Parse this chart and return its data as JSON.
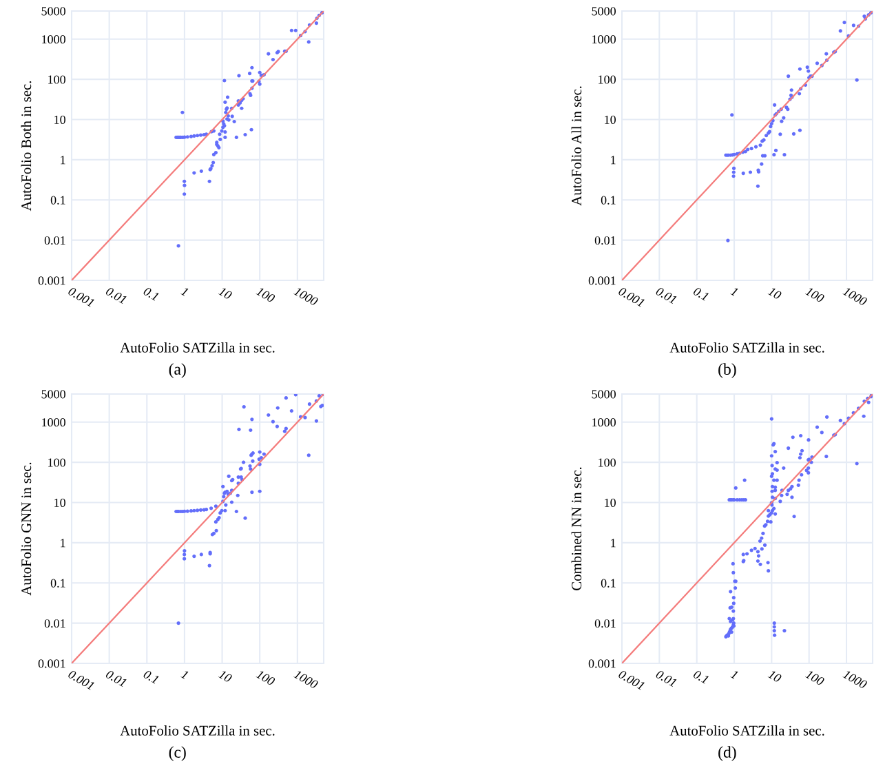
{
  "chart_data": [
    {
      "type": "scatter",
      "xlabel": "AutoFolio SATZilla in sec.",
      "ylabel": "AutoFolio Both in sec.",
      "annotations": [
        "(a)"
      ],
      "log": "xy",
      "grid": true,
      "xlim": [
        0.001,
        5000
      ],
      "ylim": [
        0.001,
        5000
      ],
      "xticks": [
        0.001,
        0.01,
        0.1,
        1,
        10,
        100,
        1000
      ],
      "yticks": [
        0.001,
        0.01,
        0.1,
        1,
        10,
        100,
        1000,
        5000
      ],
      "series": [
        {
          "type": "scatter",
          "marker": "circle",
          "color": "#636efa",
          "x": [
            0.69,
            0.88,
            0.99,
            1.0,
            0.99,
            1.8,
            2.8,
            4.6,
            4.8,
            5.0,
            5.4,
            5.8,
            6.0,
            6.8,
            0.6,
            0.65,
            0.7,
            0.75,
            0.8,
            0.9,
            1.0,
            1.2,
            1.5,
            1.8,
            2.2,
            2.7,
            3.3,
            3.8,
            5.2,
            6.0,
            7.2,
            7.7,
            8.2,
            7.2,
            8.9,
            8.6,
            9.8,
            10.5,
            11.0,
            11.5,
            12,
            12,
            10.5,
            13.5,
            14.5,
            12.5,
            13.5,
            13,
            12,
            14,
            11.5,
            15,
            18.5,
            18,
            21,
            24,
            27,
            27,
            30,
            33,
            36,
            33,
            41,
            60,
            28,
            55,
            57,
            62,
            62,
            65,
            54,
            62,
            95,
            100,
            110,
            120,
            130,
            100,
            170,
            225,
            290,
            310,
            460,
            500,
            700,
            900,
            1220,
            1600,
            2000,
            2100,
            3200,
            3300,
            3800,
            4500,
            4800
          ],
          "values": [
            0.0072,
            15,
            0.29,
            0.23,
            0.14,
            0.47,
            0.52,
            0.29,
            0.57,
            0.6,
            0.71,
            0.85,
            1.35,
            1.5,
            3.6,
            3.6,
            3.6,
            3.6,
            3.6,
            3.6,
            3.65,
            3.7,
            3.8,
            3.9,
            4.0,
            4.1,
            4.2,
            4.3,
            5.0,
            5.2,
            2.4,
            2.2,
            2.0,
            2.7,
            3.2,
            4.3,
            5.2,
            6.4,
            7.8,
            7,
            4.9,
            3.6,
            9.1,
            10.3,
            12.3,
            15,
            19.4,
            18,
            27,
            36,
            93,
            9.8,
            12,
            19,
            8.9,
            3.6,
            29,
            23,
            26,
            30,
            33,
            19,
            4.2,
            5.6,
            123,
            44,
            40,
            60,
            91,
            91,
            140,
            195,
            89,
            148,
            126,
            126,
            130,
            76,
            430,
            310,
            460,
            490,
            500,
            500,
            1640,
            1640,
            1230,
            1540,
            850,
            2250,
            2500,
            3300,
            3900,
            4500,
            4800
          ]
        },
        {
          "type": "line",
          "marker": "none",
          "color": "#f47c7c",
          "x": [
            0.001,
            5000
          ],
          "values": [
            0.001,
            5000
          ]
        }
      ]
    },
    {
      "type": "scatter",
      "xlabel": "AutoFolio SATZilla in sec.",
      "ylabel": "AutoFolio All in sec.",
      "annotations": [
        "(b)"
      ],
      "log": "xy",
      "grid": true,
      "xlim": [
        0.001,
        5000
      ],
      "ylim": [
        0.001,
        5000
      ],
      "xticks": [
        0.001,
        0.01,
        0.1,
        1,
        10,
        100,
        1000
      ],
      "yticks": [
        0.001,
        0.01,
        0.1,
        1,
        10,
        100,
        1000,
        5000
      ],
      "series": [
        {
          "type": "scatter",
          "marker": "circle",
          "color": "#636efa",
          "x": [
            0.68,
            0.87,
            0.6,
            0.65,
            0.7,
            0.8,
            0.9,
            1.0,
            1.2,
            1.4,
            1.7,
            2.0,
            2.3,
            2.9,
            3.8,
            5.0,
            5.6,
            6.2,
            7.2,
            8.2,
            8.8,
            9.4,
            10,
            10.8,
            12.5,
            13.5,
            15.5,
            18,
            21,
            18.5,
            17,
            12,
            25,
            27,
            31,
            35,
            33,
            34,
            55,
            60,
            39,
            57,
            28,
            57,
            90,
            96,
            80,
            100,
            110,
            120,
            165,
            220,
            290,
            300,
            460,
            500,
            690,
            880,
            1140,
            1550,
            2100,
            1900,
            3000,
            3200,
            3900,
            4500,
            0.98,
            0.97,
            0.96,
            1.75,
            2.7,
            4.4,
            4.5,
            5.4,
            4.3,
            5.8,
            6.6,
            11.6,
            13,
            22
          ],
          "values": [
            0.0098,
            13,
            1.3,
            1.3,
            1.3,
            1.3,
            1.32,
            1.35,
            1.4,
            1.45,
            1.55,
            1.6,
            1.8,
            1.9,
            2.1,
            2.3,
            2.9,
            3.1,
            4.0,
            4.6,
            5.0,
            6.7,
            7.9,
            9.4,
            13,
            14,
            16,
            18,
            11,
            9.0,
            4.3,
            23,
            20,
            18,
            32,
            36,
            40,
            54,
            44,
            58,
            4.4,
            5.4,
            120,
            180,
            200,
            160,
            72,
            110,
            120,
            120,
            250,
            220,
            430,
            300,
            470,
            490,
            1600,
            2600,
            1200,
            2200,
            2100,
            96,
            3700,
            3200,
            4000,
            4500,
            0.61,
            0.49,
            0.39,
            0.46,
            0.49,
            0.55,
            0.5,
            0.78,
            0.22,
            1.26,
            1.26,
            1.33,
            1.7,
            1.33
          ]
        },
        {
          "type": "line",
          "marker": "none",
          "color": "#f47c7c",
          "x": [
            0.001,
            5000
          ],
          "values": [
            0.001,
            5000
          ]
        }
      ]
    },
    {
      "type": "scatter",
      "xlabel": "AutoFolio SATZilla in sec.",
      "ylabel": "AutoFolio GNN in sec.",
      "annotations": [
        "(c)"
      ],
      "log": "xy",
      "grid": true,
      "xlim": [
        0.001,
        5000
      ],
      "ylim": [
        0.001,
        5000
      ],
      "xticks": [
        0.001,
        0.01,
        0.1,
        1,
        10,
        100,
        1000
      ],
      "yticks": [
        0.001,
        0.01,
        0.1,
        1,
        10,
        100,
        1000,
        5000
      ],
      "series": [
        {
          "type": "scatter",
          "marker": "circle",
          "color": "#636efa",
          "x": [
            0.69,
            0.6,
            0.65,
            0.7,
            0.8,
            0.9,
            1.0,
            1.2,
            1.5,
            1.8,
            2.2,
            2.7,
            3.3,
            3.8,
            5.1,
            6.8,
            1.0,
            0.99,
            0.99,
            1.8,
            2.8,
            4.8,
            4.8,
            4.6,
            5.5,
            6.0,
            7.0,
            6.8,
            7.7,
            8.3,
            8.9,
            9.8,
            12,
            12.5,
            10.5,
            11,
            11.5,
            12,
            13.5,
            14.5,
            16.5,
            18,
            18,
            10.5,
            15,
            18,
            19,
            27,
            27,
            34,
            32,
            26,
            24,
            41,
            62,
            100,
            31,
            32,
            37,
            55,
            57,
            65,
            59,
            62,
            66,
            100,
            130,
            110,
            100,
            96,
            28,
            57,
            62,
            38,
            170,
            225,
            300,
            290,
            460,
            500,
            500,
            700,
            900,
            1220,
            1600,
            2000,
            2100,
            3200,
            3200,
            3800,
            4200,
            4600,
            4800
          ],
          "values": [
            0.01,
            6.0,
            6.0,
            6.0,
            6.0,
            6.0,
            6.05,
            6.1,
            6.2,
            6.3,
            6.4,
            6.5,
            6.6,
            6.7,
            7.2,
            8.1,
            0.63,
            0.51,
            0.4,
            0.46,
            0.51,
            0.57,
            0.53,
            0.27,
            1.6,
            1.7,
            2.0,
            3.3,
            3.8,
            4.2,
            5.5,
            6.3,
            6.3,
            8.7,
            10.7,
            14,
            17,
            18,
            19,
            16,
            17,
            20,
            10.2,
            25,
            45,
            35,
            37,
            43,
            30,
            37,
            43,
            15,
            6.0,
            4.1,
            18,
            19,
            68,
            70,
            100,
            81,
            68,
            107,
            150,
            160,
            170,
            180,
            160,
            130,
            89,
            120,
            660,
            630,
            1170,
            2400,
            1500,
            1030,
            2250,
            780,
            590,
            690,
            4000,
            1900,
            4800,
            1350,
            1300,
            150,
            2800,
            3350,
            1070,
            4500,
            2450,
            2600,
            4900
          ]
        },
        {
          "type": "line",
          "marker": "none",
          "color": "#f47c7c",
          "x": [
            0.001,
            5000
          ],
          "values": [
            0.001,
            5000
          ]
        }
      ]
    },
    {
      "type": "scatter",
      "xlabel": "AutoFolio SATZilla in sec.",
      "ylabel": "Combined NN in sec.",
      "annotations": [
        "(d)"
      ],
      "log": "xy",
      "grid": true,
      "xlim": [
        0.001,
        5000
      ],
      "ylim": [
        0.001,
        5000
      ],
      "xticks": [
        0.001,
        0.01,
        0.1,
        1,
        10,
        100,
        1000
      ],
      "yticks": [
        0.001,
        0.01,
        0.1,
        1,
        10,
        100,
        1000,
        5000
      ],
      "series": [
        {
          "type": "scatter",
          "marker": "circle",
          "color": "#636efa",
          "x": [
            0.6,
            0.62,
            0.65,
            0.7,
            0.72,
            0.75,
            0.78,
            0.8,
            0.85,
            0.9,
            0.95,
            0.97,
            0.8,
            0.9,
            0.95,
            0.7,
            0.85,
            0.98,
            0.74,
            0.78,
            0.86,
            0.95,
            0.97,
            0.97,
            0.8,
            1.07,
            1.04,
            1.1,
            0.95,
            0.93,
            1.75,
            1.8,
            1.75,
            2.2,
            2.9,
            3.6,
            4.3,
            4.5,
            4.3,
            5.0,
            5.5,
            6.6,
            8.0,
            8.2,
            4.9,
            5.4,
            5.9,
            6.5,
            7.0,
            7.8,
            9.5,
            8.2,
            9.0,
            9.9,
            8.2,
            10.5,
            12.5,
            11.5,
            10.2,
            10,
            12.5,
            10.5,
            17,
            18.5,
            19,
            12.5,
            10.3,
            10.5,
            12.5,
            14,
            11.5,
            10,
            10.5,
            12.5,
            14,
            21,
            10.3,
            14,
            10,
            12.5,
            11,
            11.5,
            10,
            1.1,
            1.9,
            0.74,
            0.8,
            0.86,
            0.95,
            1.0,
            1.2,
            1.4,
            1.6,
            1.8,
            2.0,
            11.8,
            11.8,
            11.8,
            12,
            22,
            26,
            28,
            32,
            35,
            35,
            40,
            52,
            54,
            63,
            57,
            60,
            65,
            28,
            37,
            60,
            97,
            86,
            96,
            96,
            100,
            115,
            120,
            96,
            165,
            220,
            290,
            300,
            460,
            500,
            690,
            880,
            1140,
            1540,
            2100,
            1900,
            2900,
            3000,
            3700,
            3900,
            4500,
            4700
          ],
          "values": [
            0.0046,
            0.0048,
            0.005,
            0.0052,
            0.0055,
            0.006,
            0.0065,
            0.007,
            0.0075,
            0.008,
            0.009,
            0.01,
            0.011,
            0.012,
            0.013,
            0.0048,
            0.006,
            0.0085,
            0.013,
            0.024,
            0.025,
            0.02,
            0.031,
            0.043,
            0.061,
            0.075,
            0.11,
            0.11,
            0.18,
            0.3,
            0.34,
            0.36,
            0.51,
            0.53,
            0.65,
            0.72,
            0.6,
            0.47,
            0.35,
            0.29,
            0.7,
            0.87,
            0.32,
            0.2,
            1.1,
            1.3,
            1.7,
            2.6,
            2.8,
            3.4,
            3.3,
            4.6,
            5.0,
            5.5,
            6.3,
            6.3,
            5.2,
            7.1,
            8.7,
            9.9,
            12.6,
            13.5,
            10.7,
            15,
            20,
            20,
            19,
            25,
            24,
            36,
            36,
            45,
            52,
            68,
            64,
            72,
            83,
            98,
            145,
            185,
            270,
            290,
            1200,
            23,
            36,
            11.7,
            11.7,
            11.7,
            11.7,
            11.7,
            11.7,
            11.7,
            11.7,
            11.7,
            11.7,
            0.01,
            0.0081,
            0.0065,
            0.005,
            0.0065,
            16,
            20,
            22,
            25,
            13.5,
            4.5,
            27,
            36,
            49,
            130,
            160,
            195,
            225,
            420,
            460,
            360,
            63,
            72,
            55,
            118,
            100,
            135,
            115,
            750,
            550,
            140,
            1340,
            470,
            490,
            1100,
            910,
            1250,
            1700,
            2200,
            93,
            1400,
            3300,
            3900,
            3100,
            4300,
            4700
          ]
        },
        {
          "type": "line",
          "marker": "none",
          "color": "#f47c7c",
          "x": [
            0.001,
            5000
          ],
          "values": [
            0.001,
            5000
          ]
        }
      ]
    }
  ]
}
